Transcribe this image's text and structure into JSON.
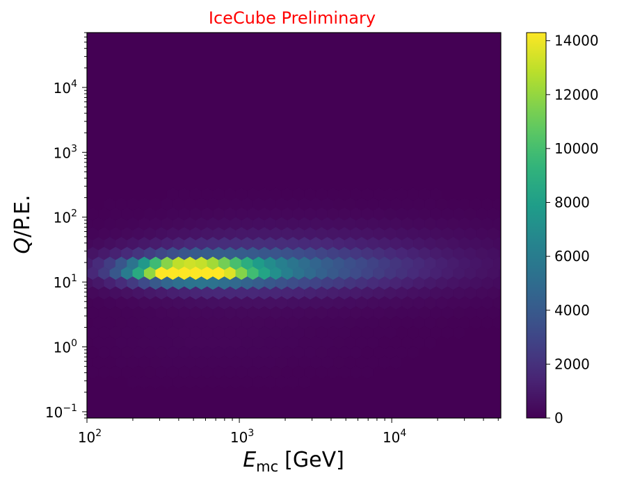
{
  "chart_data": {
    "type": "heatmap",
    "title": "IceCube Preliminary",
    "title_color": "#ff0000",
    "xlabel_main": "E",
    "xlabel_sub": "mc",
    "xlabel_unit": "[GeV]",
    "ylabel_italic": "Q",
    "ylabel_rest": "/P.E.",
    "xscale": "log",
    "yscale": "log",
    "xlim": [
      100,
      52000
    ],
    "ylim": [
      0.08,
      70000
    ],
    "x_ticks": [
      {
        "value": 100,
        "base": "10",
        "exp": "2"
      },
      {
        "value": 1000,
        "base": "10",
        "exp": "3"
      },
      {
        "value": 10000,
        "base": "10",
        "exp": "4"
      }
    ],
    "y_ticks": [
      {
        "value": 0.1,
        "base": "10",
        "exp": "−1"
      },
      {
        "value": 1,
        "base": "10",
        "exp": "0"
      },
      {
        "value": 10,
        "base": "10",
        "exp": "1"
      },
      {
        "value": 100,
        "base": "10",
        "exp": "2"
      },
      {
        "value": 1000,
        "base": "10",
        "exp": "3"
      },
      {
        "value": 10000,
        "base": "10",
        "exp": "4"
      }
    ],
    "colormap": "viridis",
    "colorbar": {
      "min": 0,
      "max": 14300,
      "ticks": [
        "0",
        "2000",
        "4000",
        "6000",
        "8000",
        "10000",
        "12000",
        "14000"
      ],
      "tick_values": [
        0,
        2000,
        4000,
        6000,
        8000,
        10000,
        12000,
        14000
      ]
    },
    "components": [
      {
        "x_center": 420,
        "y_center": 15,
        "sigma_log_x_left": 0.22,
        "sigma_log_x_right": 0.3,
        "sigma_log_y": 0.1,
        "amplitude": 14300
      },
      {
        "x_center": 700,
        "y_center": 16,
        "sigma_log_x_left": 0.45,
        "sigma_log_x_right": 0.7,
        "sigma_log_y": 0.2,
        "amplitude": 5200
      },
      {
        "x_center": 1500,
        "y_center": 20,
        "sigma_log_x_left": 0.6,
        "sigma_log_x_right": 1.0,
        "sigma_log_y": 0.4,
        "amplitude": 1500
      },
      {
        "x_center": 600,
        "y_center": 1.2,
        "sigma_log_x_left": 0.5,
        "sigma_log_x_right": 0.7,
        "sigma_log_y": 0.35,
        "amplitude": 200
      }
    ]
  }
}
